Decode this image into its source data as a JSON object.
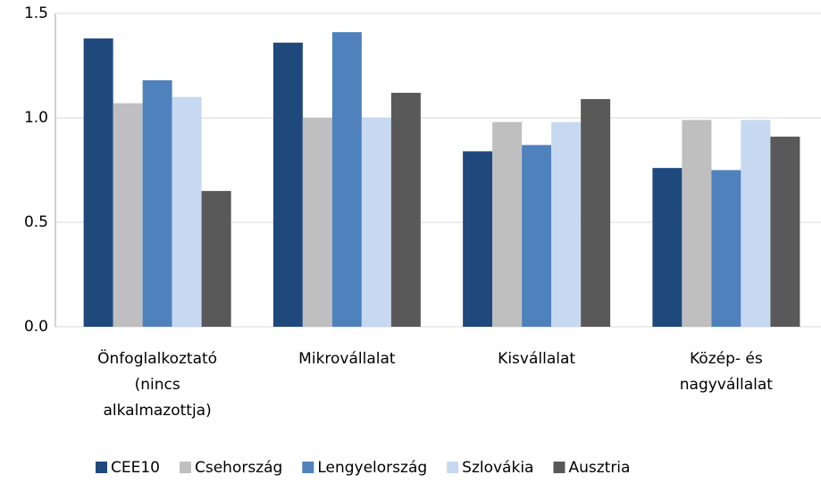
{
  "chart_data": {
    "type": "bar",
    "categories": [
      "Önfoglalkoztató\n(nincs\nalkalmazottja)",
      "Mikrovállalat",
      "Kisvállalat",
      "Közép- és\nnagyvállalat"
    ],
    "series": [
      {
        "name": "CEE10",
        "color": "#1f497d",
        "values": [
          1.38,
          1.36,
          0.84,
          0.76
        ]
      },
      {
        "name": "Csehország",
        "color": "#bfbfbf",
        "values": [
          1.07,
          1.0,
          0.98,
          0.99
        ]
      },
      {
        "name": "Lengyelország",
        "color": "#4f81bd",
        "values": [
          1.18,
          1.41,
          0.87,
          0.75
        ]
      },
      {
        "name": "Szlovákia",
        "color": "#c6d9f1",
        "values": [
          1.1,
          1.0,
          0.98,
          0.99
        ]
      },
      {
        "name": "Ausztria",
        "color": "#595959",
        "values": [
          0.65,
          1.12,
          1.09,
          0.91
        ]
      }
    ],
    "ylim": [
      0,
      1.5
    ],
    "yticks": [
      {
        "value": 0,
        "label": "0.0"
      },
      0.5,
      {
        "value": 1,
        "label": "1.0"
      },
      1.5
    ],
    "grid": true
  }
}
